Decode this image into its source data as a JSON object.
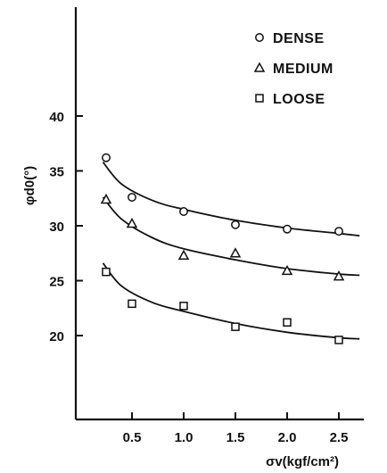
{
  "chart_data": {
    "type": "scatter",
    "xlabel": "σv(kgf/cm²)",
    "ylabel": "φd0(°)",
    "x_ticks": [
      "0.5",
      "1.0",
      "1.5",
      "2.0",
      "2.5"
    ],
    "y_ticks": [
      "20",
      "25",
      "30",
      "35",
      "40"
    ],
    "xlim": [
      0.05,
      2.75
    ],
    "ylim": [
      14.5,
      44
    ],
    "legend_placement": "top-right",
    "grid": false,
    "series": [
      {
        "name": "DENSE",
        "marker": "circle",
        "points": [
          [
            0.25,
            36.2
          ],
          [
            0.5,
            32.6
          ],
          [
            1.0,
            31.3
          ],
          [
            1.5,
            30.1
          ],
          [
            2.0,
            29.7
          ],
          [
            2.5,
            29.5
          ]
        ],
        "fit": [
          [
            0.22,
            35.8
          ],
          [
            0.4,
            33.8
          ],
          [
            0.7,
            32.3
          ],
          [
            1.0,
            31.5
          ],
          [
            1.5,
            30.5
          ],
          [
            2.0,
            29.8
          ],
          [
            2.5,
            29.3
          ],
          [
            2.7,
            29.1
          ]
        ]
      },
      {
        "name": "MEDIUM",
        "marker": "triangle",
        "points": [
          [
            0.25,
            32.4
          ],
          [
            0.5,
            30.2
          ],
          [
            1.0,
            27.3
          ],
          [
            1.5,
            27.5
          ],
          [
            2.0,
            25.9
          ],
          [
            2.5,
            25.4
          ]
        ],
        "fit": [
          [
            0.22,
            32.6
          ],
          [
            0.4,
            30.6
          ],
          [
            0.7,
            28.9
          ],
          [
            1.0,
            27.9
          ],
          [
            1.5,
            26.9
          ],
          [
            2.0,
            26.1
          ],
          [
            2.5,
            25.6
          ],
          [
            2.7,
            25.5
          ]
        ]
      },
      {
        "name": "LOOSE",
        "marker": "square",
        "points": [
          [
            0.25,
            25.8
          ],
          [
            0.5,
            22.9
          ],
          [
            1.0,
            22.7
          ],
          [
            1.5,
            20.8
          ],
          [
            2.0,
            21.2
          ],
          [
            2.5,
            19.6
          ]
        ],
        "fit": [
          [
            0.22,
            26.6
          ],
          [
            0.4,
            24.5
          ],
          [
            0.7,
            23.0
          ],
          [
            1.0,
            22.2
          ],
          [
            1.5,
            21.1
          ],
          [
            2.0,
            20.3
          ],
          [
            2.5,
            19.8
          ],
          [
            2.7,
            19.7
          ]
        ]
      }
    ]
  },
  "colors": {
    "ink": "#111111",
    "background": "#ffffff"
  }
}
